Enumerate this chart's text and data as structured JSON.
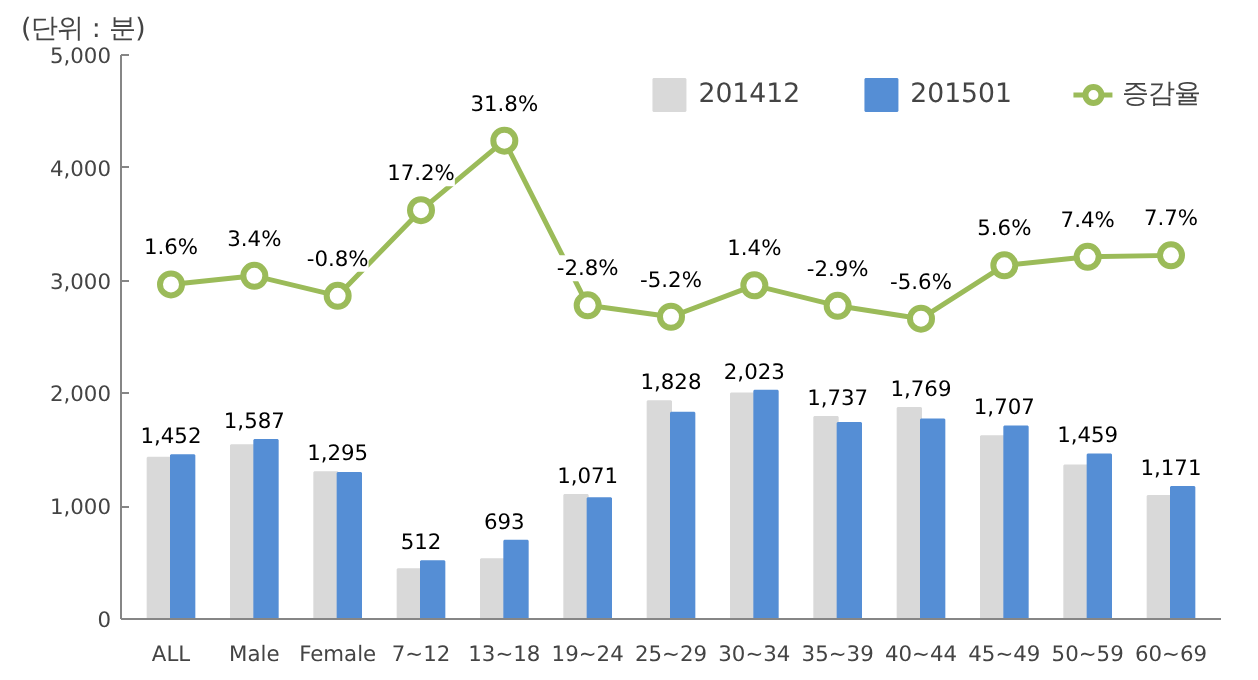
{
  "chart_data": {
    "type": "bar",
    "annotations": [
      "(단위 : 분)"
    ],
    "categories": [
      "ALL",
      "Male",
      "Female",
      "7~12",
      "13~18",
      "19~24",
      "25~29",
      "30~34",
      "35~39",
      "40~44",
      "45~49",
      "50~59",
      "60~69"
    ],
    "series": [
      {
        "name": "201412",
        "color": "#d9d9d9",
        "values": [
          1430,
          1540,
          1300,
          440,
          530,
          1100,
          1930,
          2000,
          1790,
          1870,
          1620,
          1360,
          1090
        ]
      },
      {
        "name": "201501",
        "color": "#558ed5",
        "values": [
          1452,
          1587,
          1295,
          512,
          693,
          1071,
          1828,
          2023,
          1737,
          1769,
          1707,
          1459,
          1171
        ],
        "value_labels": [
          "1,452",
          "1,587",
          "1,295",
          "512",
          "693",
          "1,071",
          "1,828",
          "2,023",
          "1,737",
          "1,769",
          "1,707",
          "1,459",
          "1,171"
        ]
      },
      {
        "name": "증감율",
        "type": "line",
        "axis": "y2",
        "color": "#9bbb59",
        "marker": "circle",
        "values": [
          1.6,
          3.4,
          -0.8,
          17.2,
          31.8,
          -2.8,
          -5.2,
          1.4,
          -2.9,
          -5.6,
          5.6,
          7.4,
          7.7
        ],
        "value_labels": [
          "1.6%",
          "3.4%",
          "-0.8%",
          "17.2%",
          "31.8%",
          "-2.8%",
          "-5.2%",
          "1.4%",
          "-2.9%",
          "-5.6%",
          "5.6%",
          "7.4%",
          "7.7%"
        ]
      }
    ],
    "ylim": [
      0,
      5000
    ],
    "yticks": [
      {
        "value": 0,
        "label": "0"
      },
      {
        "value": 1000,
        "label": "1,000"
      },
      {
        "value": 2000,
        "label": "2,000"
      },
      {
        "value": 3000,
        "label": "3,000"
      },
      {
        "value": 4000,
        "label": "4,000"
      },
      {
        "value": 5000,
        "label": "5,000"
      }
    ],
    "y2lim": [
      -68.7,
      49.8
    ],
    "tick_labels": "xy",
    "grid": false,
    "legend": "top right"
  }
}
